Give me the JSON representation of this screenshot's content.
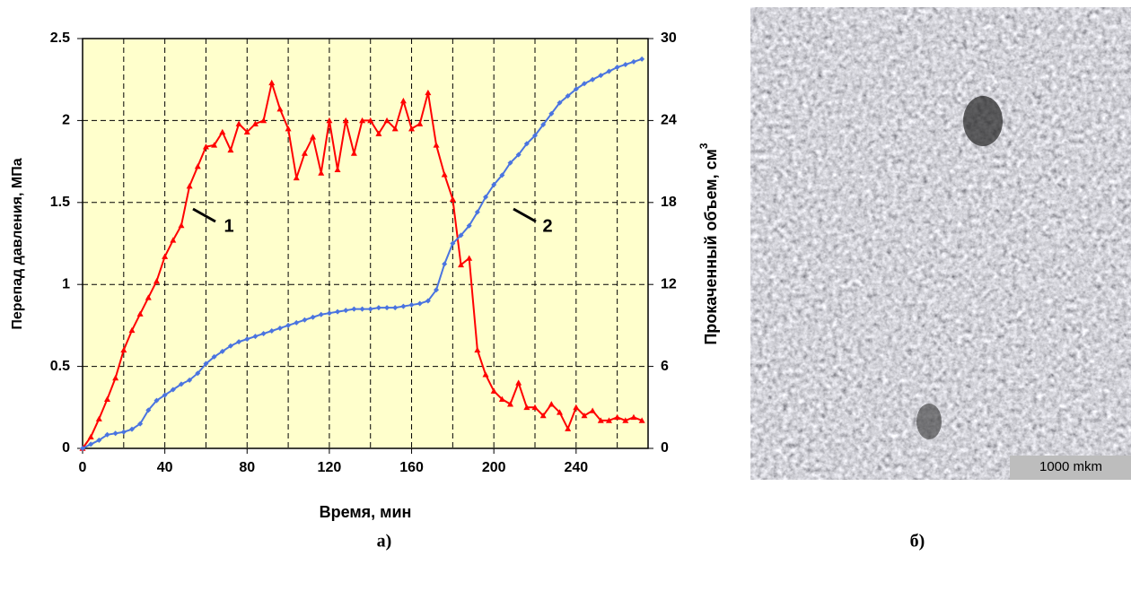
{
  "chart_data": {
    "type": "line",
    "xlabel": "Время, мин",
    "ylabel": "Перепад давления, МПа",
    "y2label": "Прокаченный объем, см",
    "y2label_sup": "3",
    "x": [
      0,
      4,
      8,
      12,
      16,
      20,
      24,
      28,
      32,
      36,
      40,
      44,
      48,
      52,
      56,
      60,
      64,
      68,
      72,
      76,
      80,
      84,
      88,
      92,
      96,
      100,
      104,
      108,
      112,
      116,
      120,
      124,
      128,
      132,
      136,
      140,
      144,
      148,
      152,
      156,
      160,
      164,
      168,
      172,
      176,
      180,
      184,
      188,
      192,
      196,
      200,
      204,
      208,
      212,
      216,
      220,
      224,
      228,
      232,
      236,
      240,
      244,
      248,
      252,
      256,
      260,
      264,
      268,
      272
    ],
    "series": [
      {
        "color": "#ff0000",
        "marker": "triangle",
        "label": "1",
        "values": [
          0,
          0.07,
          0.18,
          0.3,
          0.43,
          0.6,
          0.72,
          0.82,
          0.92,
          1.02,
          1.17,
          1.27,
          1.36,
          1.6,
          1.72,
          1.84,
          1.85,
          1.93,
          1.82,
          1.98,
          1.93,
          1.98,
          2.0,
          2.23,
          2.07,
          1.95,
          1.65,
          1.8,
          1.9,
          1.68,
          2.0,
          1.7,
          2.0,
          1.8,
          2.0,
          2.0,
          1.92,
          2.0,
          1.95,
          2.12,
          1.95,
          1.98,
          2.17,
          1.85,
          1.67,
          1.52,
          1.12,
          1.16,
          0.6,
          0.45,
          0.35,
          0.3,
          0.27,
          0.4,
          0.25,
          0.25,
          0.2,
          0.27,
          0.22,
          0.12,
          0.25,
          0.2,
          0.23,
          0.17,
          0.17,
          0.19,
          0.17,
          0.19,
          0.17
        ]
      },
      {
        "color": "#4a74e0",
        "marker": "diamond",
        "axis": "y2",
        "label": "2",
        "values": [
          0,
          0.3,
          0.6,
          1.0,
          1.1,
          1.2,
          1.4,
          1.8,
          2.8,
          3.5,
          3.9,
          4.3,
          4.7,
          5.0,
          5.5,
          6.2,
          6.7,
          7.1,
          7.5,
          7.8,
          8.0,
          8.2,
          8.4,
          8.6,
          8.8,
          9.0,
          9.2,
          9.4,
          9.6,
          9.8,
          9.9,
          10.0,
          10.1,
          10.2,
          10.2,
          10.2,
          10.3,
          10.3,
          10.3,
          10.4,
          10.5,
          10.6,
          10.8,
          11.6,
          13.5,
          15.0,
          15.6,
          16.3,
          17.3,
          18.4,
          19.3,
          20.0,
          20.9,
          21.5,
          22.3,
          22.9,
          23.7,
          24.5,
          25.3,
          25.8,
          26.3,
          26.7,
          27.0,
          27.3,
          27.6,
          27.9,
          28.1,
          28.3,
          28.5
        ]
      }
    ],
    "xlim": [
      0,
      275
    ],
    "xticks": [
      0,
      40,
      80,
      120,
      160,
      200,
      240
    ],
    "xgrid": [
      20,
      40,
      60,
      80,
      100,
      120,
      140,
      160,
      180,
      200,
      220,
      240,
      260
    ],
    "ylim": [
      0,
      2.5
    ],
    "yticks": [
      0,
      0.5,
      1,
      1.5,
      2,
      2.5
    ],
    "y2lim": [
      0,
      30
    ],
    "y2ticks": [
      0,
      6,
      12,
      18,
      24,
      30
    ],
    "grid": true,
    "background": "#ffffcc"
  },
  "image": {
    "scale_label": "1000 mkm"
  },
  "panels": {
    "a": "а)",
    "b": "б)"
  }
}
